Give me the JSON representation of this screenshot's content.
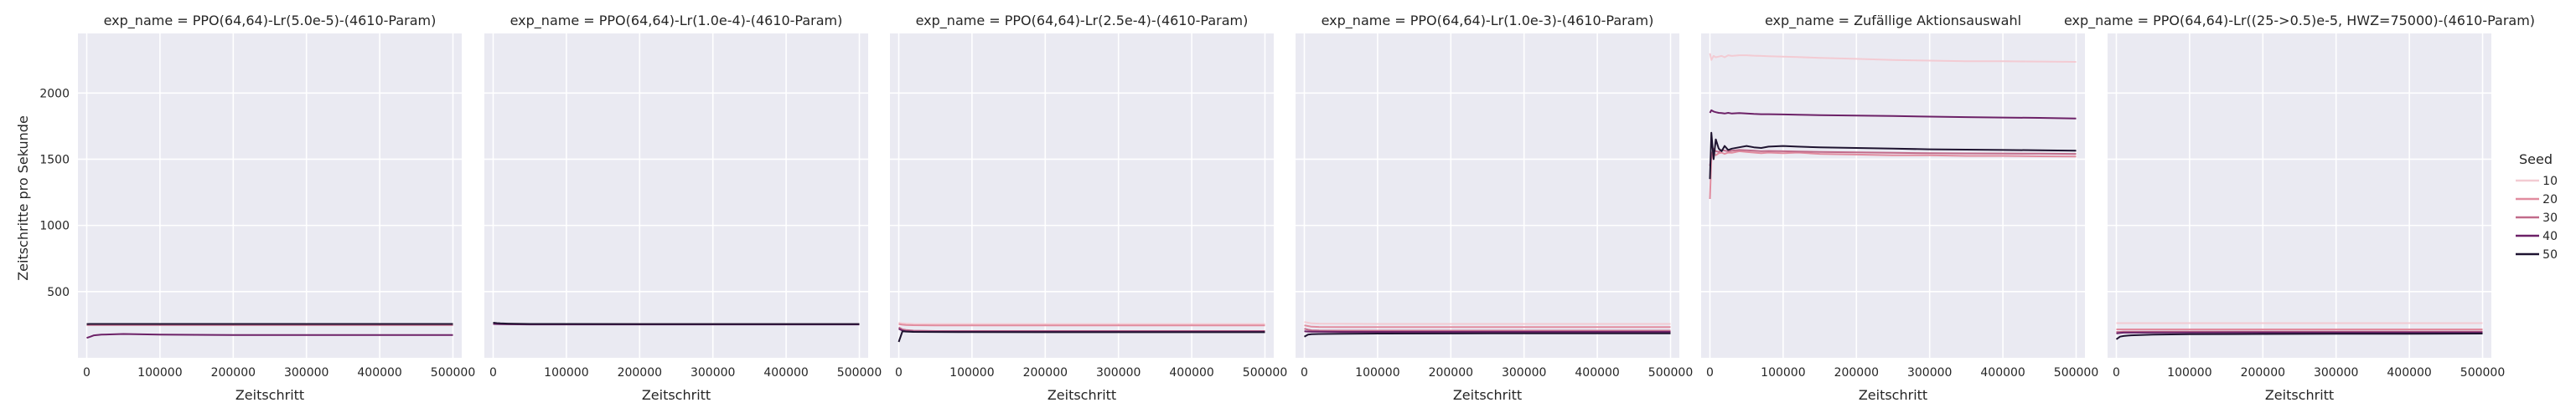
{
  "figure": {
    "ylabel": "Zeitschritte pro Sekunde",
    "xlabel": "Zeitschritt",
    "legend_title": "Seed",
    "legend_placement": "right",
    "grid": true,
    "background": "#eaeaf2",
    "palette": {
      "10": "#f3cbd3",
      "20": "#e18c9f",
      "30": "#c16b8a",
      "40": "#6c2167",
      "50": "#1e1330"
    }
  },
  "chart_data": [
    {
      "type": "line",
      "title": "exp_name = PPO(64,64)-Lr(5.0e-5)-(4610-Param)",
      "xlabel": "Zeitschritt",
      "ylabel": "Zeitschritte pro Sekunde",
      "xlim": [
        -12000,
        512000
      ],
      "ylim": [
        0,
        2450
      ],
      "xticks": [
        0,
        100000,
        200000,
        300000,
        400000,
        500000
      ],
      "yticks": [
        500,
        1000,
        1500,
        2000
      ],
      "x": [
        0,
        5000,
        10000,
        20000,
        50000,
        100000,
        200000,
        300000,
        400000,
        500000
      ],
      "series": [
        {
          "name": "10",
          "values": [
            255,
            255,
            255,
            255,
            255,
            255,
            255,
            255,
            255,
            255
          ]
        },
        {
          "name": "20",
          "values": [
            252,
            252,
            252,
            252,
            252,
            252,
            252,
            252,
            252,
            252
          ]
        },
        {
          "name": "30",
          "values": [
            248,
            248,
            248,
            248,
            248,
            248,
            248,
            248,
            248,
            248
          ]
        },
        {
          "name": "40",
          "values": [
            150,
            160,
            170,
            175,
            180,
            175,
            172,
            172,
            172,
            172
          ]
        },
        {
          "name": "50",
          "values": [
            255,
            256,
            256,
            256,
            256,
            256,
            256,
            256,
            256,
            256
          ]
        }
      ]
    },
    {
      "type": "line",
      "title": "exp_name = PPO(64,64)-Lr(1.0e-4)-(4610-Param)",
      "xlabel": "Zeitschritt",
      "ylabel": "",
      "xlim": [
        -12000,
        512000
      ],
      "ylim": [
        0,
        2450
      ],
      "xticks": [
        0,
        100000,
        200000,
        300000,
        400000,
        500000
      ],
      "yticks": [
        500,
        1000,
        1500,
        2000
      ],
      "x": [
        0,
        5000,
        10000,
        20000,
        50000,
        100000,
        200000,
        300000,
        400000,
        500000
      ],
      "series": [
        {
          "name": "10",
          "values": [
            262,
            260,
            258,
            257,
            256,
            256,
            255,
            255,
            255,
            255
          ]
        },
        {
          "name": "20",
          "values": [
            260,
            258,
            257,
            256,
            255,
            255,
            254,
            254,
            254,
            254
          ]
        },
        {
          "name": "30",
          "values": [
            258,
            257,
            256,
            255,
            254,
            254,
            253,
            253,
            253,
            253
          ]
        },
        {
          "name": "40",
          "values": [
            256,
            255,
            254,
            253,
            252,
            252,
            252,
            252,
            252,
            252
          ]
        },
        {
          "name": "50",
          "values": [
            265,
            262,
            260,
            258,
            256,
            256,
            255,
            255,
            255,
            255
          ]
        }
      ]
    },
    {
      "type": "line",
      "title": "exp_name = PPO(64,64)-Lr(2.5e-4)-(4610-Param)",
      "xlabel": "Zeitschritt",
      "ylabel": "",
      "xlim": [
        -12000,
        512000
      ],
      "ylim": [
        0,
        2450
      ],
      "xticks": [
        0,
        100000,
        200000,
        300000,
        400000,
        500000
      ],
      "yticks": [
        500,
        1000,
        1500,
        2000
      ],
      "x": [
        0,
        5000,
        10000,
        20000,
        50000,
        100000,
        200000,
        300000,
        400000,
        500000
      ],
      "series": [
        {
          "name": "10",
          "values": [
            265,
            260,
            258,
            256,
            255,
            255,
            255,
            255,
            255,
            255
          ]
        },
        {
          "name": "20",
          "values": [
            255,
            250,
            248,
            246,
            245,
            245,
            245,
            245,
            245,
            245
          ]
        },
        {
          "name": "30",
          "values": [
            230,
            215,
            210,
            205,
            202,
            202,
            202,
            202,
            202,
            202
          ]
        },
        {
          "name": "40",
          "values": [
            220,
            205,
            200,
            198,
            197,
            197,
            197,
            197,
            197,
            197
          ]
        },
        {
          "name": "50",
          "values": [
            120,
            200,
            198,
            196,
            195,
            194,
            193,
            193,
            193,
            193
          ]
        }
      ]
    },
    {
      "type": "line",
      "title": "exp_name = PPO(64,64)-Lr(1.0e-3)-(4610-Param)",
      "xlabel": "Zeitschritt",
      "ylabel": "",
      "xlim": [
        -12000,
        512000
      ],
      "ylim": [
        0,
        2450
      ],
      "xticks": [
        0,
        100000,
        200000,
        300000,
        400000,
        500000
      ],
      "yticks": [
        500,
        1000,
        1500,
        2000
      ],
      "x": [
        0,
        5000,
        10000,
        20000,
        50000,
        100000,
        200000,
        300000,
        400000,
        500000
      ],
      "series": [
        {
          "name": "10",
          "values": [
            270,
            265,
            260,
            258,
            257,
            256,
            256,
            256,
            256,
            256
          ]
        },
        {
          "name": "20",
          "values": [
            245,
            240,
            235,
            233,
            232,
            232,
            232,
            232,
            232,
            232
          ]
        },
        {
          "name": "30",
          "values": [
            220,
            212,
            208,
            206,
            205,
            205,
            205,
            205,
            205,
            205
          ]
        },
        {
          "name": "40",
          "values": [
            200,
            198,
            197,
            197,
            196,
            196,
            196,
            196,
            196,
            196
          ]
        },
        {
          "name": "50",
          "values": [
            160,
            175,
            178,
            180,
            182,
            183,
            184,
            185,
            185,
            185
          ]
        }
      ]
    },
    {
      "type": "line",
      "title": "exp_name = Zufällige Aktionsauswahl",
      "xlabel": "Zeitschritt",
      "ylabel": "",
      "xlim": [
        -12000,
        512000
      ],
      "ylim": [
        0,
        2450
      ],
      "xticks": [
        0,
        100000,
        200000,
        300000,
        400000,
        500000
      ],
      "yticks": [
        500,
        1000,
        1500,
        2000
      ],
      "x": [
        0,
        2000,
        5000,
        8000,
        12000,
        16000,
        20000,
        25000,
        30000,
        40000,
        50000,
        60000,
        70000,
        80000,
        100000,
        120000,
        150000,
        200000,
        250000,
        300000,
        350000,
        400000,
        450000,
        500000
      ],
      "series": [
        {
          "name": "10",
          "values": [
            2300,
            2250,
            2280,
            2270,
            2275,
            2280,
            2270,
            2285,
            2280,
            2285,
            2285,
            2282,
            2280,
            2278,
            2275,
            2272,
            2265,
            2258,
            2250,
            2245,
            2240,
            2240,
            2238,
            2235
          ]
        },
        {
          "name": "20",
          "values": [
            1200,
            1500,
            1550,
            1530,
            1545,
            1550,
            1540,
            1550,
            1548,
            1560,
            1555,
            1550,
            1545,
            1550,
            1545,
            1550,
            1540,
            1535,
            1530,
            1530,
            1525,
            1525,
            1522,
            1520
          ]
        },
        {
          "name": "30",
          "values": [
            1450,
            1520,
            1580,
            1560,
            1555,
            1570,
            1565,
            1560,
            1565,
            1570,
            1568,
            1565,
            1560,
            1562,
            1560,
            1558,
            1555,
            1552,
            1548,
            1545,
            1544,
            1543,
            1542,
            1540
          ]
        },
        {
          "name": "40",
          "values": [
            1850,
            1870,
            1860,
            1855,
            1850,
            1848,
            1845,
            1850,
            1845,
            1848,
            1845,
            1842,
            1840,
            1840,
            1838,
            1836,
            1833,
            1830,
            1826,
            1822,
            1818,
            1815,
            1812,
            1808
          ]
        },
        {
          "name": "50",
          "values": [
            1350,
            1700,
            1500,
            1650,
            1580,
            1560,
            1600,
            1570,
            1580,
            1590,
            1600,
            1590,
            1585,
            1595,
            1600,
            1595,
            1590,
            1585,
            1580,
            1575,
            1572,
            1570,
            1568,
            1565
          ]
        }
      ]
    },
    {
      "type": "line",
      "title": "exp_name = PPO(64,64)-Lr((25->0.5)e-5, HWZ=75000)-(4610-Param)",
      "xlabel": "Zeitschritt",
      "ylabel": "",
      "xlim": [
        -12000,
        512000
      ],
      "ylim": [
        0,
        2450
      ],
      "xticks": [
        0,
        100000,
        200000,
        300000,
        400000,
        500000
      ],
      "yticks": [
        500,
        1000,
        1500,
        2000
      ],
      "x": [
        0,
        5000,
        10000,
        20000,
        50000,
        100000,
        200000,
        300000,
        400000,
        500000
      ],
      "series": [
        {
          "name": "10",
          "values": [
            262,
            262,
            262,
            262,
            262,
            262,
            262,
            262,
            262,
            262
          ]
        },
        {
          "name": "20",
          "values": [
            215,
            215,
            215,
            215,
            215,
            215,
            215,
            215,
            215,
            215
          ]
        },
        {
          "name": "30",
          "values": [
            195,
            196,
            197,
            197,
            197,
            198,
            198,
            198,
            198,
            198
          ]
        },
        {
          "name": "40",
          "values": [
            185,
            188,
            190,
            190,
            191,
            191,
            192,
            192,
            192,
            192
          ]
        },
        {
          "name": "50",
          "values": [
            140,
            160,
            165,
            170,
            175,
            178,
            180,
            181,
            182,
            183
          ]
        }
      ]
    }
  ]
}
